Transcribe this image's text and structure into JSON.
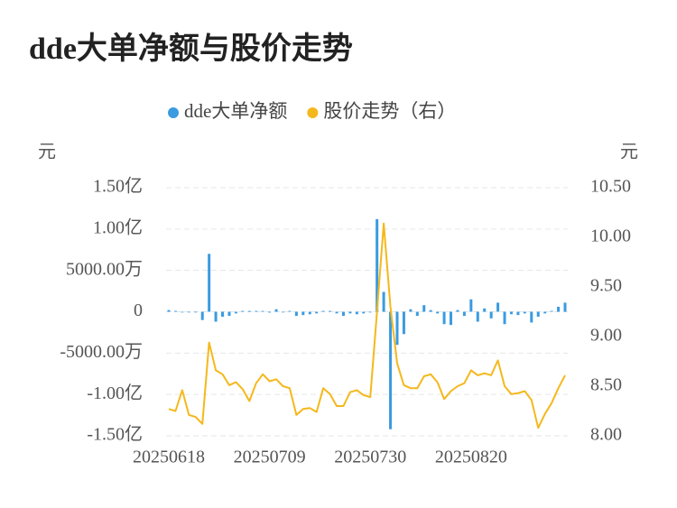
{
  "chart_data": {
    "type": "bar+line",
    "title": "dde大单净额与股价走势",
    "y_unit": "元",
    "y2_unit": "元",
    "categories": [
      "20250618",
      null,
      null,
      null,
      null,
      null,
      null,
      null,
      null,
      null,
      null,
      null,
      null,
      null,
      null,
      "20250709",
      null,
      null,
      null,
      null,
      null,
      null,
      null,
      null,
      null,
      null,
      null,
      null,
      null,
      null,
      "20250730",
      null,
      null,
      null,
      null,
      null,
      null,
      null,
      null,
      null,
      null,
      null,
      null,
      null,
      null,
      "20250820",
      null,
      null,
      null,
      null,
      null,
      null,
      null,
      null,
      null,
      null,
      null,
      null,
      null,
      null
    ],
    "series": [
      {
        "name": "dde大单净额",
        "color": "#3a9be0",
        "type": "bar",
        "axis": "y",
        "values": [
          0.02,
          0.01,
          0,
          0,
          0,
          -0.1,
          0.7,
          -0.12,
          -0.06,
          -0.05,
          -0.02,
          0.01,
          0.01,
          0.01,
          0.01,
          -0.01,
          0.03,
          0,
          0.01,
          -0.05,
          -0.04,
          -0.03,
          -0.02,
          0.01,
          0.01,
          -0.02,
          -0.05,
          -0.02,
          -0.03,
          -0.02,
          0,
          1.12,
          0.24,
          -1.42,
          -0.4,
          -0.27,
          0.03,
          -0.05,
          0.08,
          0.02,
          -0.02,
          -0.15,
          -0.16,
          0.02,
          -0.05,
          0.15,
          -0.12,
          0.04,
          -0.08,
          0.11,
          -0.15,
          -0.03,
          -0.04,
          -0.02,
          -0.13,
          -0.06,
          -0.02,
          0.01,
          0.06,
          0.11
        ]
      },
      {
        "name": "股价走势（右）",
        "color": "#f5b81c",
        "type": "line",
        "axis": "y2",
        "values": [
          8.27,
          8.25,
          8.46,
          8.21,
          8.19,
          8.12,
          8.94,
          8.66,
          8.62,
          8.51,
          8.54,
          8.47,
          8.35,
          8.53,
          8.62,
          8.55,
          8.57,
          8.5,
          8.48,
          8.21,
          8.27,
          8.28,
          8.24,
          8.48,
          8.42,
          8.3,
          8.3,
          8.44,
          8.46,
          8.41,
          8.39,
          9.25,
          10.14,
          9.3,
          8.73,
          8.51,
          8.48,
          8.48,
          8.6,
          8.62,
          8.54,
          8.37,
          8.45,
          8.5,
          8.53,
          8.66,
          8.61,
          8.63,
          8.61,
          8.76,
          8.5,
          8.42,
          8.43,
          8.45,
          8.36,
          8.08,
          8.22,
          8.33,
          8.48,
          8.61
        ]
      }
    ],
    "ylim": [
      -1.5,
      1.5
    ],
    "yticks": [
      {
        "value": -1.5,
        "label": "-1.50亿"
      },
      {
        "value": -1,
        "label": "-1.00亿"
      },
      {
        "value": -0.5,
        "label": "-5000.00万"
      },
      0,
      {
        "value": 0.5,
        "label": "5000.00万"
      },
      {
        "value": 1,
        "label": "1.00亿"
      },
      {
        "value": 1.5,
        "label": "1.50亿"
      }
    ],
    "y2lim": [
      8,
      10.5
    ],
    "y2ticks": [
      {
        "value": 8,
        "label": "8.00"
      },
      {
        "value": 8.5,
        "label": "8.50"
      },
      {
        "value": 9,
        "label": "9.00"
      },
      {
        "value": 9.5,
        "label": "9.50"
      },
      {
        "value": 10,
        "label": "10.00"
      },
      {
        "value": 10.5,
        "label": "10.50"
      }
    ],
    "grid": true,
    "legend": "top"
  }
}
